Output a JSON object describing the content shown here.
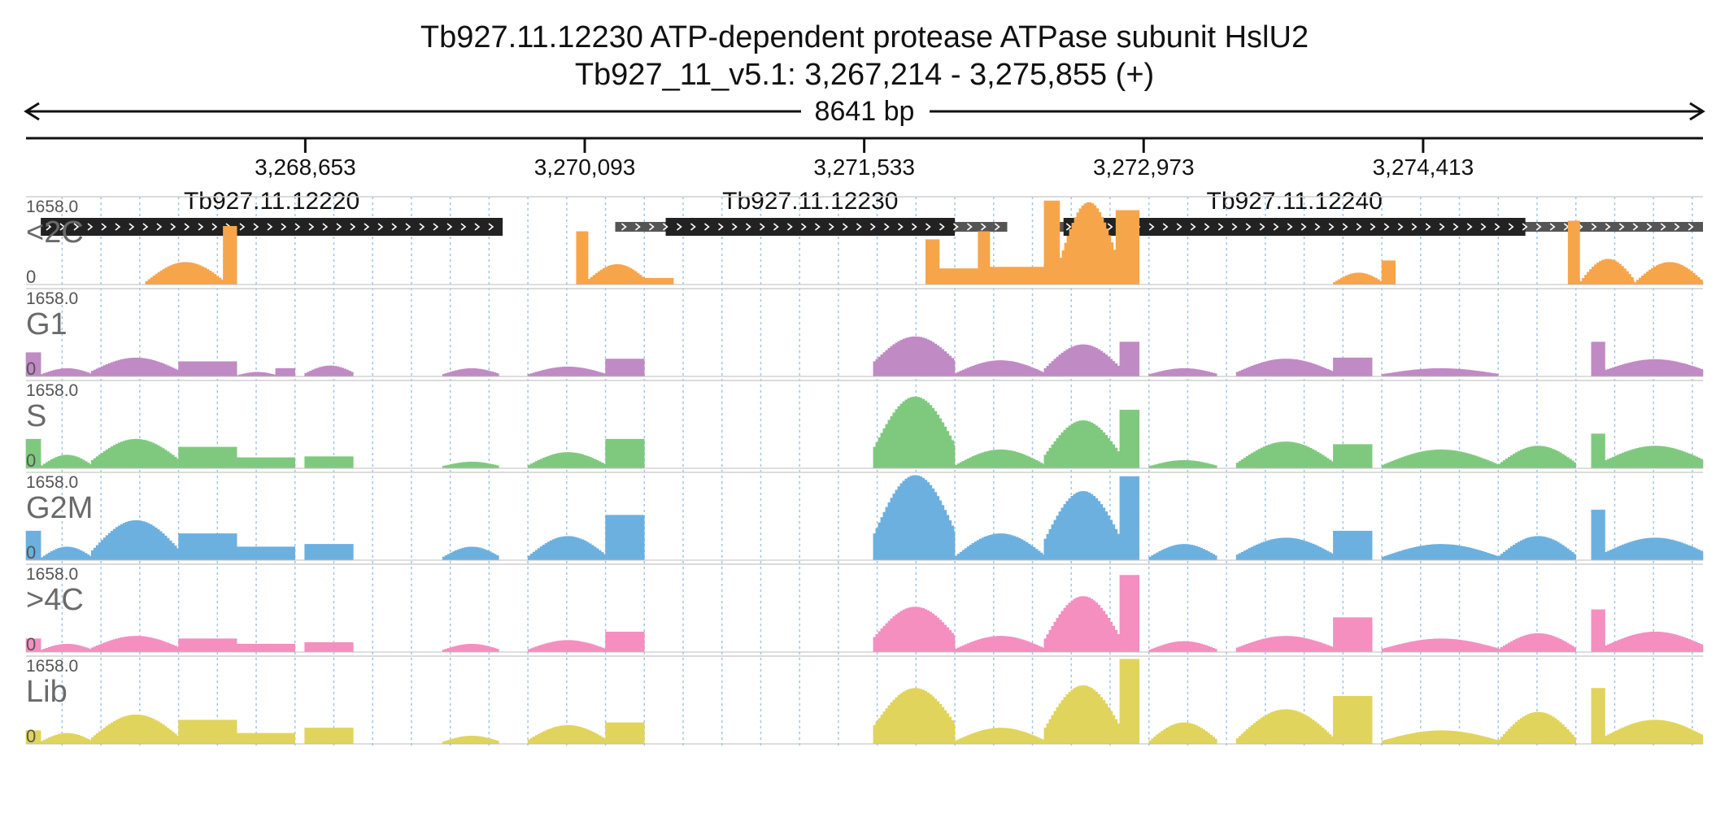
{
  "title": "Tb927.11.12230  ATP-dependent protease ATPase subunit HslU2",
  "subtitle": "Tb927_11_v5.1: 3,267,214 - 3,275,855 (+)",
  "span_label": "8641 bp",
  "chart_data": {
    "type": "area",
    "region": {
      "chromosome": "Tb927_11_v5.1",
      "start": 3267214,
      "end": 3275855,
      "strand": "+"
    },
    "x_ticks": [
      3268653,
      3270093,
      3271533,
      3272973,
      3274413
    ],
    "x_tick_labels": [
      "3,268,653",
      "3,270,093",
      "3,271,533",
      "3,272,973",
      "3,274,413"
    ],
    "genes": [
      {
        "name": "Tb927.11.12220",
        "utr": [
          3267214,
          3267214
        ],
        "cds": [
          3267290,
          3269670
        ]
      },
      {
        "name": "Tb927.11.12230",
        "utr": [
          3270250,
          3272270
        ],
        "cds": [
          3270510,
          3272000
        ]
      },
      {
        "name": "Tb927.11.12240",
        "utr": [
          3272470,
          3275855
        ],
        "cds": [
          3272560,
          3274940
        ]
      }
    ],
    "ylim": [
      0,
      1658.0
    ],
    "y_max_label": "1658.0",
    "y_min_label": "0",
    "series": [
      {
        "name": "<2C",
        "color": "#f7a54b",
        "segments": [
          {
            "x0": 3267830,
            "x1": 3268230,
            "shape": "hump",
            "peak": 420,
            "base": 60
          },
          {
            "x0": 3268230,
            "x1": 3268300,
            "shape": "flat",
            "peak": 1100
          },
          {
            "x0": 3270050,
            "x1": 3270110,
            "shape": "flat",
            "peak": 1000
          },
          {
            "x0": 3270110,
            "x1": 3270400,
            "shape": "hump",
            "peak": 380,
            "base": 100
          },
          {
            "x0": 3270400,
            "x1": 3270550,
            "shape": "flat",
            "peak": 120
          },
          {
            "x0": 3271850,
            "x1": 3271920,
            "shape": "flat",
            "peak": 850
          },
          {
            "x0": 3271920,
            "x1": 3272120,
            "shape": "flat",
            "peak": 300
          },
          {
            "x0": 3272120,
            "x1": 3272180,
            "shape": "flat",
            "peak": 1000
          },
          {
            "x0": 3272180,
            "x1": 3272460,
            "shape": "flat",
            "peak": 330
          },
          {
            "x0": 3272460,
            "x1": 3272540,
            "shape": "flat",
            "peak": 1580
          },
          {
            "x0": 3272540,
            "x1": 3272830,
            "shape": "hump",
            "peak": 1550,
            "base": 500
          },
          {
            "x0": 3272830,
            "x1": 3272950,
            "shape": "flat",
            "peak": 1400
          },
          {
            "x0": 3273950,
            "x1": 3274200,
            "shape": "hump",
            "peak": 220,
            "base": 40
          },
          {
            "x0": 3274200,
            "x1": 3274270,
            "shape": "flat",
            "peak": 450
          },
          {
            "x0": 3275160,
            "x1": 3275220,
            "shape": "flat",
            "peak": 1200
          },
          {
            "x0": 3275220,
            "x1": 3275500,
            "shape": "hump",
            "peak": 480,
            "base": 60
          },
          {
            "x0": 3275500,
            "x1": 3275855,
            "shape": "hump",
            "peak": 420,
            "base": 40
          }
        ]
      },
      {
        "name": "G1",
        "color": "#c08ac4",
        "segments": [
          {
            "x0": 3267214,
            "x1": 3267290,
            "shape": "flat",
            "peak": 450
          },
          {
            "x0": 3267290,
            "x1": 3267550,
            "shape": "hump",
            "peak": 150,
            "base": 40
          },
          {
            "x0": 3267550,
            "x1": 3268000,
            "shape": "hump",
            "peak": 350,
            "base": 100
          },
          {
            "x0": 3268000,
            "x1": 3268300,
            "shape": "flat",
            "peak": 280
          },
          {
            "x0": 3268300,
            "x1": 3268500,
            "shape": "hump",
            "peak": 80,
            "base": 20
          },
          {
            "x0": 3268500,
            "x1": 3268600,
            "shape": "flat",
            "peak": 150
          },
          {
            "x0": 3268650,
            "x1": 3268900,
            "shape": "hump",
            "peak": 200,
            "base": 60
          },
          {
            "x0": 3269360,
            "x1": 3269650,
            "shape": "hump",
            "peak": 150,
            "base": 40
          },
          {
            "x0": 3269800,
            "x1": 3270200,
            "shape": "hump",
            "peak": 180,
            "base": 40
          },
          {
            "x0": 3270200,
            "x1": 3270400,
            "shape": "flat",
            "peak": 330
          },
          {
            "x0": 3271580,
            "x1": 3272000,
            "shape": "hump",
            "peak": 750,
            "base": 280
          },
          {
            "x0": 3272000,
            "x1": 3272460,
            "shape": "hump",
            "peak": 300,
            "base": 60
          },
          {
            "x0": 3272460,
            "x1": 3272850,
            "shape": "hump",
            "peak": 600,
            "base": 150
          },
          {
            "x0": 3272850,
            "x1": 3272950,
            "shape": "flat",
            "peak": 650
          },
          {
            "x0": 3273000,
            "x1": 3273350,
            "shape": "hump",
            "peak": 150,
            "base": 40
          },
          {
            "x0": 3273450,
            "x1": 3273950,
            "shape": "hump",
            "peak": 330,
            "base": 80
          },
          {
            "x0": 3273950,
            "x1": 3274150,
            "shape": "flat",
            "peak": 350
          },
          {
            "x0": 3274200,
            "x1": 3274800,
            "shape": "hump",
            "peak": 150,
            "base": 40
          },
          {
            "x0": 3275280,
            "x1": 3275350,
            "shape": "flat",
            "peak": 650
          },
          {
            "x0": 3275350,
            "x1": 3275855,
            "shape": "hump",
            "peak": 320,
            "base": 120
          }
        ]
      },
      {
        "name": "S",
        "color": "#7fc97f",
        "segments": [
          {
            "x0": 3267214,
            "x1": 3267290,
            "shape": "flat",
            "peak": 550
          },
          {
            "x0": 3267290,
            "x1": 3267550,
            "shape": "hump",
            "peak": 250,
            "base": 50
          },
          {
            "x0": 3267550,
            "x1": 3268000,
            "shape": "hump",
            "peak": 550,
            "base": 150
          },
          {
            "x0": 3268000,
            "x1": 3268300,
            "shape": "flat",
            "peak": 400
          },
          {
            "x0": 3268300,
            "x1": 3268600,
            "shape": "flat",
            "peak": 200
          },
          {
            "x0": 3268650,
            "x1": 3268900,
            "shape": "flat",
            "peak": 220
          },
          {
            "x0": 3269360,
            "x1": 3269650,
            "shape": "hump",
            "peak": 120,
            "base": 40
          },
          {
            "x0": 3269800,
            "x1": 3270200,
            "shape": "hump",
            "peak": 300,
            "base": 60
          },
          {
            "x0": 3270200,
            "x1": 3270400,
            "shape": "flat",
            "peak": 550
          },
          {
            "x0": 3271580,
            "x1": 3272000,
            "shape": "hump",
            "peak": 1350,
            "base": 400
          },
          {
            "x0": 3272000,
            "x1": 3272460,
            "shape": "hump",
            "peak": 350,
            "base": 60
          },
          {
            "x0": 3272460,
            "x1": 3272850,
            "shape": "hump",
            "peak": 900,
            "base": 250
          },
          {
            "x0": 3272850,
            "x1": 3272950,
            "shape": "flat",
            "peak": 1100
          },
          {
            "x0": 3273000,
            "x1": 3273350,
            "shape": "hump",
            "peak": 150,
            "base": 40
          },
          {
            "x0": 3273450,
            "x1": 3273950,
            "shape": "hump",
            "peak": 500,
            "base": 100
          },
          {
            "x0": 3273950,
            "x1": 3274150,
            "shape": "flat",
            "peak": 450
          },
          {
            "x0": 3274200,
            "x1": 3274800,
            "shape": "hump",
            "peak": 350,
            "base": 60
          },
          {
            "x0": 3274800,
            "x1": 3275200,
            "shape": "hump",
            "peak": 420,
            "base": 80
          },
          {
            "x0": 3275280,
            "x1": 3275350,
            "shape": "flat",
            "peak": 650
          },
          {
            "x0": 3275350,
            "x1": 3275855,
            "shape": "hump",
            "peak": 420,
            "base": 150
          }
        ]
      },
      {
        "name": "G2M",
        "color": "#6cb0e0",
        "segments": [
          {
            "x0": 3267214,
            "x1": 3267290,
            "shape": "flat",
            "peak": 550
          },
          {
            "x0": 3267290,
            "x1": 3267550,
            "shape": "hump",
            "peak": 250,
            "base": 50
          },
          {
            "x0": 3267550,
            "x1": 3268000,
            "shape": "hump",
            "peak": 750,
            "base": 180
          },
          {
            "x0": 3268000,
            "x1": 3268300,
            "shape": "flat",
            "peak": 500
          },
          {
            "x0": 3268300,
            "x1": 3268600,
            "shape": "flat",
            "peak": 250
          },
          {
            "x0": 3268650,
            "x1": 3268900,
            "shape": "flat",
            "peak": 300
          },
          {
            "x0": 3269360,
            "x1": 3269650,
            "shape": "hump",
            "peak": 250,
            "base": 60
          },
          {
            "x0": 3269800,
            "x1": 3270200,
            "shape": "hump",
            "peak": 450,
            "base": 80
          },
          {
            "x0": 3270200,
            "x1": 3270400,
            "shape": "flat",
            "peak": 850
          },
          {
            "x0": 3271580,
            "x1": 3272000,
            "shape": "hump",
            "peak": 1600,
            "base": 500
          },
          {
            "x0": 3272000,
            "x1": 3272460,
            "shape": "hump",
            "peak": 500,
            "base": 80
          },
          {
            "x0": 3272460,
            "x1": 3272850,
            "shape": "hump",
            "peak": 1300,
            "base": 400
          },
          {
            "x0": 3272850,
            "x1": 3272950,
            "shape": "flat",
            "peak": 1580
          },
          {
            "x0": 3273000,
            "x1": 3273350,
            "shape": "hump",
            "peak": 300,
            "base": 60
          },
          {
            "x0": 3273450,
            "x1": 3273950,
            "shape": "hump",
            "peak": 420,
            "base": 100
          },
          {
            "x0": 3273950,
            "x1": 3274150,
            "shape": "flat",
            "peak": 550
          },
          {
            "x0": 3274200,
            "x1": 3274800,
            "shape": "hump",
            "peak": 300,
            "base": 60
          },
          {
            "x0": 3274800,
            "x1": 3275200,
            "shape": "hump",
            "peak": 450,
            "base": 80
          },
          {
            "x0": 3275280,
            "x1": 3275350,
            "shape": "flat",
            "peak": 950
          },
          {
            "x0": 3275350,
            "x1": 3275855,
            "shape": "hump",
            "peak": 420,
            "base": 150
          }
        ]
      },
      {
        "name": ">4C",
        "color": "#f48fc0",
        "segments": [
          {
            "x0": 3267214,
            "x1": 3267290,
            "shape": "flat",
            "peak": 250
          },
          {
            "x0": 3267290,
            "x1": 3267550,
            "shape": "hump",
            "peak": 150,
            "base": 40
          },
          {
            "x0": 3267550,
            "x1": 3268000,
            "shape": "hump",
            "peak": 300,
            "base": 80
          },
          {
            "x0": 3268000,
            "x1": 3268300,
            "shape": "flat",
            "peak": 250
          },
          {
            "x0": 3268300,
            "x1": 3268600,
            "shape": "flat",
            "peak": 150
          },
          {
            "x0": 3268650,
            "x1": 3268900,
            "shape": "flat",
            "peak": 180
          },
          {
            "x0": 3269360,
            "x1": 3269650,
            "shape": "hump",
            "peak": 150,
            "base": 40
          },
          {
            "x0": 3269800,
            "x1": 3270200,
            "shape": "hump",
            "peak": 220,
            "base": 50
          },
          {
            "x0": 3270200,
            "x1": 3270400,
            "shape": "flat",
            "peak": 380
          },
          {
            "x0": 3271580,
            "x1": 3272000,
            "shape": "hump",
            "peak": 850,
            "base": 280
          },
          {
            "x0": 3272000,
            "x1": 3272460,
            "shape": "hump",
            "peak": 300,
            "base": 60
          },
          {
            "x0": 3272460,
            "x1": 3272850,
            "shape": "hump",
            "peak": 1050,
            "base": 250
          },
          {
            "x0": 3272850,
            "x1": 3272950,
            "shape": "flat",
            "peak": 1450
          },
          {
            "x0": 3273000,
            "x1": 3273350,
            "shape": "hump",
            "peak": 200,
            "base": 40
          },
          {
            "x0": 3273450,
            "x1": 3273950,
            "shape": "hump",
            "peak": 300,
            "base": 80
          },
          {
            "x0": 3273950,
            "x1": 3274150,
            "shape": "flat",
            "peak": 650
          },
          {
            "x0": 3274200,
            "x1": 3274800,
            "shape": "hump",
            "peak": 250,
            "base": 60
          },
          {
            "x0": 3274800,
            "x1": 3275200,
            "shape": "hump",
            "peak": 350,
            "base": 60
          },
          {
            "x0": 3275280,
            "x1": 3275350,
            "shape": "flat",
            "peak": 800
          },
          {
            "x0": 3275350,
            "x1": 3275855,
            "shape": "hump",
            "peak": 380,
            "base": 120
          }
        ]
      },
      {
        "name": "Lib",
        "color": "#e0d45c",
        "segments": [
          {
            "x0": 3267214,
            "x1": 3267290,
            "shape": "flat",
            "peak": 250
          },
          {
            "x0": 3267290,
            "x1": 3267550,
            "shape": "hump",
            "peak": 200,
            "base": 50
          },
          {
            "x0": 3267550,
            "x1": 3268000,
            "shape": "hump",
            "peak": 550,
            "base": 120
          },
          {
            "x0": 3268000,
            "x1": 3268300,
            "shape": "flat",
            "peak": 450
          },
          {
            "x0": 3268300,
            "x1": 3268600,
            "shape": "flat",
            "peak": 200
          },
          {
            "x0": 3268650,
            "x1": 3268900,
            "shape": "flat",
            "peak": 300
          },
          {
            "x0": 3269360,
            "x1": 3269650,
            "shape": "hump",
            "peak": 150,
            "base": 40
          },
          {
            "x0": 3269800,
            "x1": 3270200,
            "shape": "hump",
            "peak": 350,
            "base": 80
          },
          {
            "x0": 3270200,
            "x1": 3270400,
            "shape": "flat",
            "peak": 400
          },
          {
            "x0": 3271580,
            "x1": 3272000,
            "shape": "hump",
            "peak": 1050,
            "base": 350
          },
          {
            "x0": 3272000,
            "x1": 3272460,
            "shape": "hump",
            "peak": 300,
            "base": 60
          },
          {
            "x0": 3272460,
            "x1": 3272850,
            "shape": "hump",
            "peak": 1100,
            "base": 300
          },
          {
            "x0": 3272850,
            "x1": 3272950,
            "shape": "flat",
            "peak": 1600
          },
          {
            "x0": 3273000,
            "x1": 3273350,
            "shape": "hump",
            "peak": 400,
            "base": 60
          },
          {
            "x0": 3273450,
            "x1": 3273950,
            "shape": "hump",
            "peak": 650,
            "base": 100
          },
          {
            "x0": 3273950,
            "x1": 3274150,
            "shape": "flat",
            "peak": 900
          },
          {
            "x0": 3274200,
            "x1": 3274800,
            "shape": "hump",
            "peak": 250,
            "base": 60
          },
          {
            "x0": 3274800,
            "x1": 3275200,
            "shape": "hump",
            "peak": 600,
            "base": 80
          },
          {
            "x0": 3275280,
            "x1": 3275350,
            "shape": "flat",
            "peak": 1050
          },
          {
            "x0": 3275350,
            "x1": 3275855,
            "shape": "hump",
            "peak": 450,
            "base": 150
          }
        ]
      }
    ]
  }
}
